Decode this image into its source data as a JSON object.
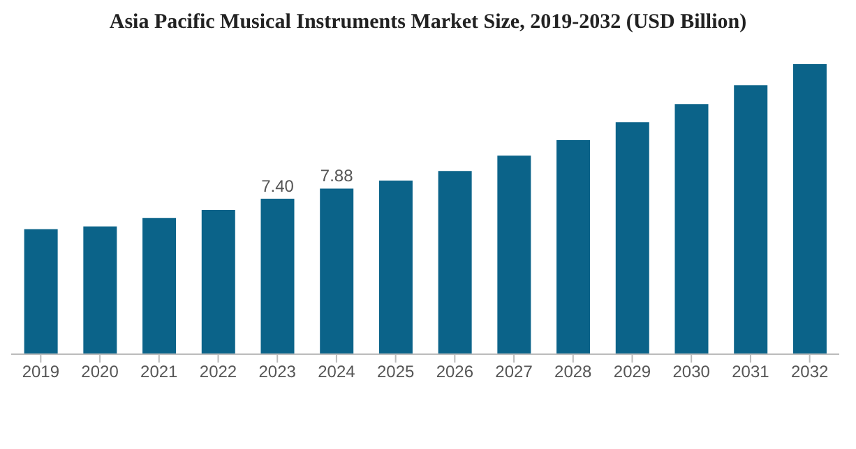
{
  "chart_data": {
    "type": "bar",
    "title": "Asia Pacific Musical Instruments Market Size, 2019-2032 (USD Billion)",
    "categories": [
      "2019",
      "2020",
      "2021",
      "2022",
      "2023",
      "2024",
      "2025",
      "2026",
      "2027",
      "2028",
      "2029",
      "2030",
      "2031",
      "2032"
    ],
    "values": [
      5.95,
      6.08,
      6.48,
      6.87,
      7.4,
      7.88,
      8.26,
      8.72,
      9.45,
      10.18,
      11.04,
      11.9,
      12.8,
      13.8
    ],
    "value_labels": [
      null,
      null,
      null,
      null,
      "7.40",
      "7.88",
      null,
      null,
      null,
      null,
      null,
      null,
      null,
      null
    ],
    "color": "#0b6389"
  }
}
